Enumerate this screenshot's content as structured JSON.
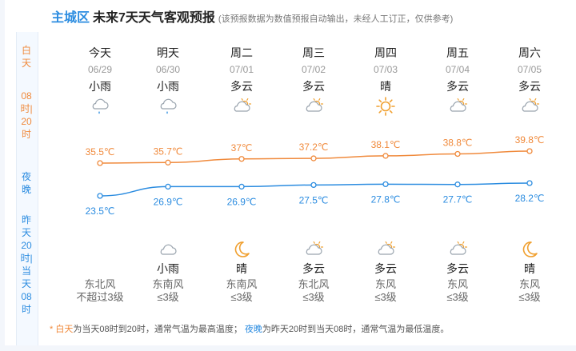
{
  "header": {
    "city": "主城区",
    "title": "未来7天天气客观预报",
    "note": "(该预报数据为数值预报自动输出，未经人工订正，仅供参考)"
  },
  "side": {
    "day_label": "白天",
    "day_hours": "08时|20时",
    "night_label": "夜晚",
    "night_hours": "昨天20时|当天08时"
  },
  "days": [
    {
      "weekday": "今天",
      "date": "06/29",
      "day_weather": "小雨",
      "day_icon": "light-rain",
      "high": "35.5℃",
      "night_icon": "",
      "night_weather": "",
      "low": "23.5℃",
      "wind_dir": "东北风",
      "wind_level": "不超过3级"
    },
    {
      "weekday": "明天",
      "date": "06/30",
      "day_weather": "小雨",
      "day_icon": "light-rain",
      "high": "35.7℃",
      "night_icon": "cloudy",
      "night_weather": "小雨",
      "low": "26.9℃",
      "wind_dir": "东南风",
      "wind_level": "≤3级"
    },
    {
      "weekday": "周二",
      "date": "07/01",
      "day_weather": "多云",
      "day_icon": "partly-cloudy",
      "high": "37℃",
      "night_icon": "moon",
      "night_weather": "晴",
      "low": "26.9℃",
      "wind_dir": "东南风",
      "wind_level": "≤3级"
    },
    {
      "weekday": "周三",
      "date": "07/02",
      "day_weather": "多云",
      "day_icon": "partly-cloudy",
      "high": "37.2℃",
      "night_icon": "partly-cloudy",
      "night_weather": "多云",
      "low": "27.5℃",
      "wind_dir": "东北风",
      "wind_level": "≤3级"
    },
    {
      "weekday": "周四",
      "date": "07/03",
      "day_weather": "晴",
      "day_icon": "sun",
      "high": "38.1℃",
      "night_icon": "partly-cloudy",
      "night_weather": "多云",
      "low": "27.8℃",
      "wind_dir": "东风",
      "wind_level": "≤3级"
    },
    {
      "weekday": "周五",
      "date": "07/04",
      "day_weather": "多云",
      "day_icon": "partly-cloudy",
      "high": "38.8℃",
      "night_icon": "partly-cloudy",
      "night_weather": "多云",
      "low": "27.7℃",
      "wind_dir": "东风",
      "wind_level": "≤3级"
    },
    {
      "weekday": "周六",
      "date": "07/05",
      "day_weather": "多云",
      "day_icon": "partly-cloudy",
      "high": "39.8℃",
      "night_icon": "moon",
      "night_weather": "晴",
      "low": "28.2℃",
      "wind_dir": "东风",
      "wind_level": "≤3级"
    }
  ],
  "chart_data": {
    "type": "line",
    "categories": [
      "06/29",
      "06/30",
      "07/01",
      "07/02",
      "07/03",
      "07/04",
      "07/05"
    ],
    "series": [
      {
        "values": [
          35.5,
          35.7,
          37,
          37.2,
          38.1,
          38.8,
          39.8
        ],
        "color": "#f08a3c"
      },
      {
        "values": [
          23.5,
          26.9,
          26.9,
          27.5,
          27.8,
          27.7,
          28.2
        ],
        "color": "#2b8ce0"
      }
    ]
  },
  "footnote": {
    "star": "*",
    "day_word": "白天",
    "day_text": "为当天08时到20时，通常气温为最高温度；",
    "night_word": "夜晚",
    "night_text": "为昨天20时到当天08时，通常气温为最低温度。"
  },
  "colors": {
    "day": "#f08a3c",
    "night": "#2b8ce0",
    "text": "#222222",
    "muted": "#999999"
  }
}
